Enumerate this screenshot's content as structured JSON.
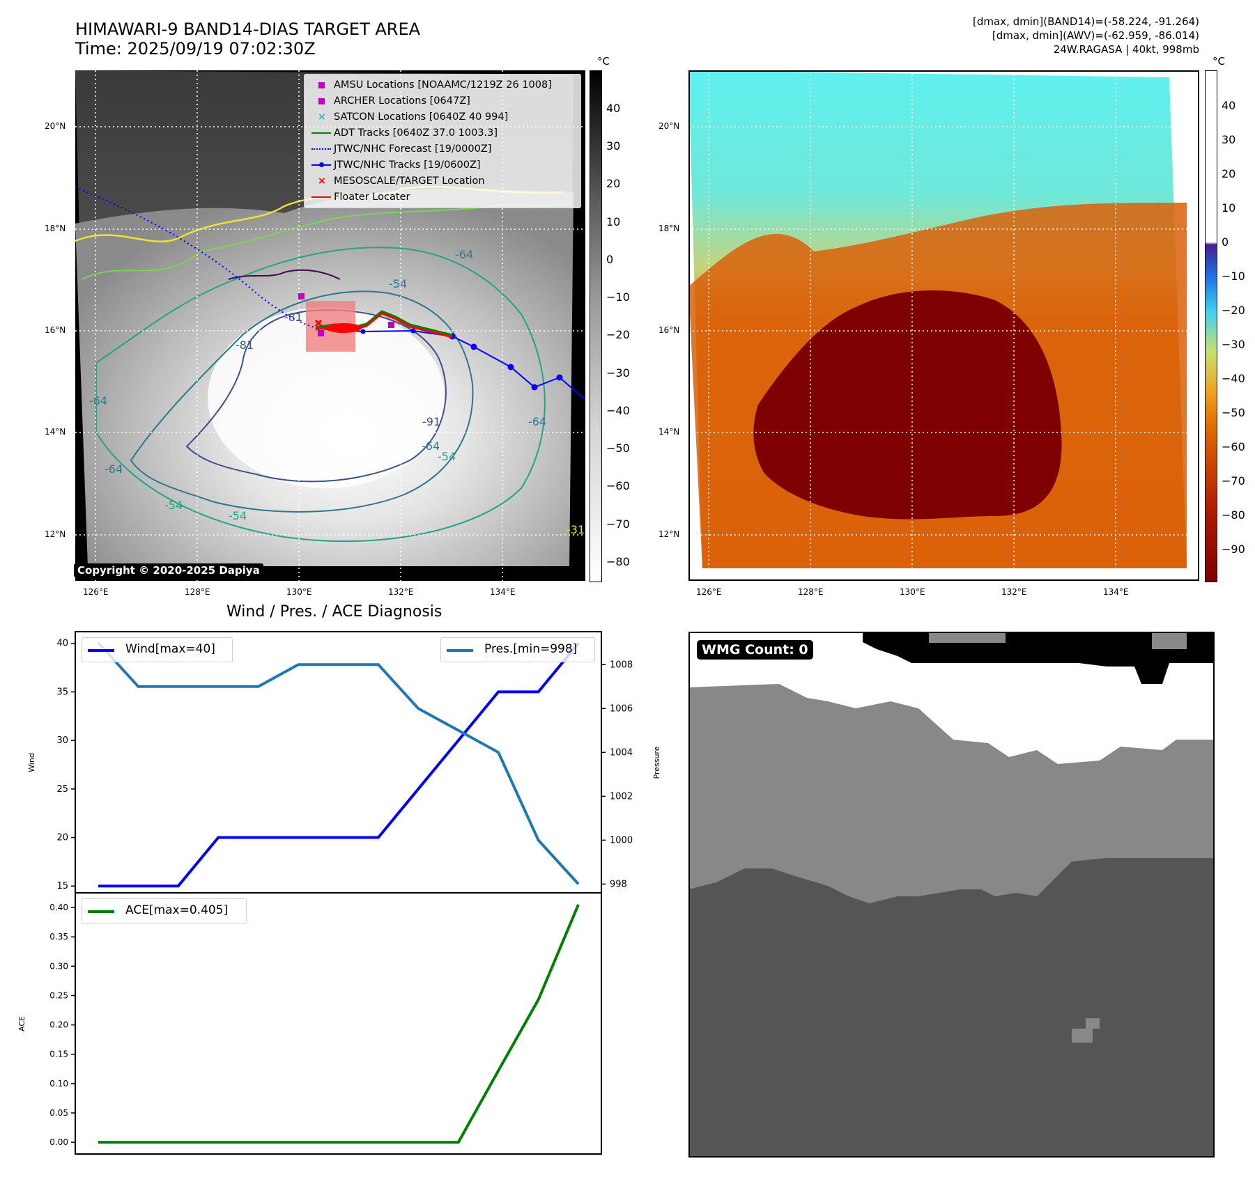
{
  "header": {
    "title_line1": "HIMAWARI-9 BAND14-DIAS TARGET AREA",
    "title_line2": "Time: 2025/09/19 07:02:30Z",
    "info_line1": "[dmax, dmin](BAND14)=(-58.224, -91.264)",
    "info_line2": "[dmax, dmin](AWV)=(-62.959, -86.014)",
    "info_line3": "24W.RAGASA | 40kt, 998mb"
  },
  "map": {
    "lon_ticks": [
      "126°E",
      "128°E",
      "130°E",
      "132°E",
      "134°E"
    ],
    "lat_ticks": [
      "20°N",
      "18°N",
      "16°N",
      "14°N",
      "12°N"
    ],
    "contour_labels": [
      "-64",
      "-54",
      "-81",
      "-81",
      "-91",
      "-64",
      "-54",
      "-64",
      "-54",
      "-54",
      "-64",
      "-64",
      "-31"
    ],
    "copyright": "Copyright © 2020-2025 Dapiya",
    "legend": [
      {
        "label": "AMSU Locations [NOAAMC/1219Z 26 1008]",
        "symbol": "square",
        "color": "#bf00bf"
      },
      {
        "label": "ARCHER Locations [0647Z]",
        "symbol": "square",
        "color": "#bf00bf"
      },
      {
        "label": "SATCON Locations [0640Z 40 994]",
        "symbol": "x",
        "color": "#17becf"
      },
      {
        "label": "ADT Tracks [0640Z 37.0 1003.3]",
        "symbol": "line",
        "color": "#008000"
      },
      {
        "label": "JTWC/NHC Forecast [19/0000Z]",
        "symbol": "dotted",
        "color": "#0000ff"
      },
      {
        "label": "JTWC/NHC Tracks [19/0600Z]",
        "symbol": "line-dot",
        "color": "#0000ff"
      },
      {
        "label": "MESOSCALE/TARGET Location",
        "symbol": "x",
        "color": "#ff0000"
      },
      {
        "label": "Floater Locater",
        "symbol": "line",
        "color": "#ff0000"
      }
    ]
  },
  "colorbars": {
    "unit": "°C",
    "gray_ticks": [
      "40",
      "30",
      "20",
      "10",
      "0",
      "−10",
      "−20",
      "−30",
      "−40",
      "−50",
      "−60",
      "−70",
      "−80"
    ],
    "color_ticks": [
      "40",
      "30",
      "20",
      "10",
      "0",
      "−10",
      "−20",
      "−30",
      "−40",
      "−50",
      "−60",
      "−70",
      "−80",
      "−90"
    ]
  },
  "colors": {
    "wind": "#0000ff",
    "pressure": "#1f77b4",
    "ace": "#008000",
    "floater": "#ff0000",
    "target_box": "#f08080"
  },
  "chart_data": [
    {
      "type": "line",
      "title": "Wind / Pres. / ACE Diagnosis",
      "ylabel": "Wind",
      "y2label": "Pressure",
      "ylim": [
        14.3,
        41.2
      ],
      "y2lim": [
        997.6,
        1009.5
      ],
      "yticks": [
        "40",
        "35",
        "30",
        "25",
        "20",
        "15"
      ],
      "y2ticks": [
        "1008",
        "1006",
        "1004",
        "1002",
        "1000",
        "998"
      ],
      "x": [
        0,
        1,
        2,
        3,
        4,
        5,
        6,
        7,
        8,
        9,
        10,
        11,
        12
      ],
      "series": [
        {
          "name": "Wind[max=40]",
          "axis": "left",
          "values": [
            15,
            15,
            15,
            20,
            20,
            20,
            20,
            20,
            25,
            30,
            35,
            35,
            40
          ]
        },
        {
          "name": "Pres.[min=998]",
          "axis": "right",
          "values": [
            1009,
            1007,
            1007,
            1007,
            1007,
            1008,
            1008,
            1008,
            1006,
            1005,
            1004,
            1000,
            998
          ]
        }
      ]
    },
    {
      "type": "line",
      "ylabel": "ACE",
      "ylim": [
        -0.02,
        0.425
      ],
      "yticks": [
        "0.40",
        "0.35",
        "0.30",
        "0.25",
        "0.20",
        "0.15",
        "0.10",
        "0.05",
        "0.00"
      ],
      "x": [
        0,
        1,
        2,
        3,
        4,
        5,
        6,
        7,
        8,
        9,
        10,
        11,
        12
      ],
      "series": [
        {
          "name": "ACE[max=0.405]",
          "values": [
            0,
            0,
            0,
            0,
            0,
            0,
            0,
            0,
            0,
            0,
            0.122,
            0.243,
            0.405
          ]
        }
      ]
    }
  ],
  "wmg": {
    "label": "WMG Count: 0"
  }
}
